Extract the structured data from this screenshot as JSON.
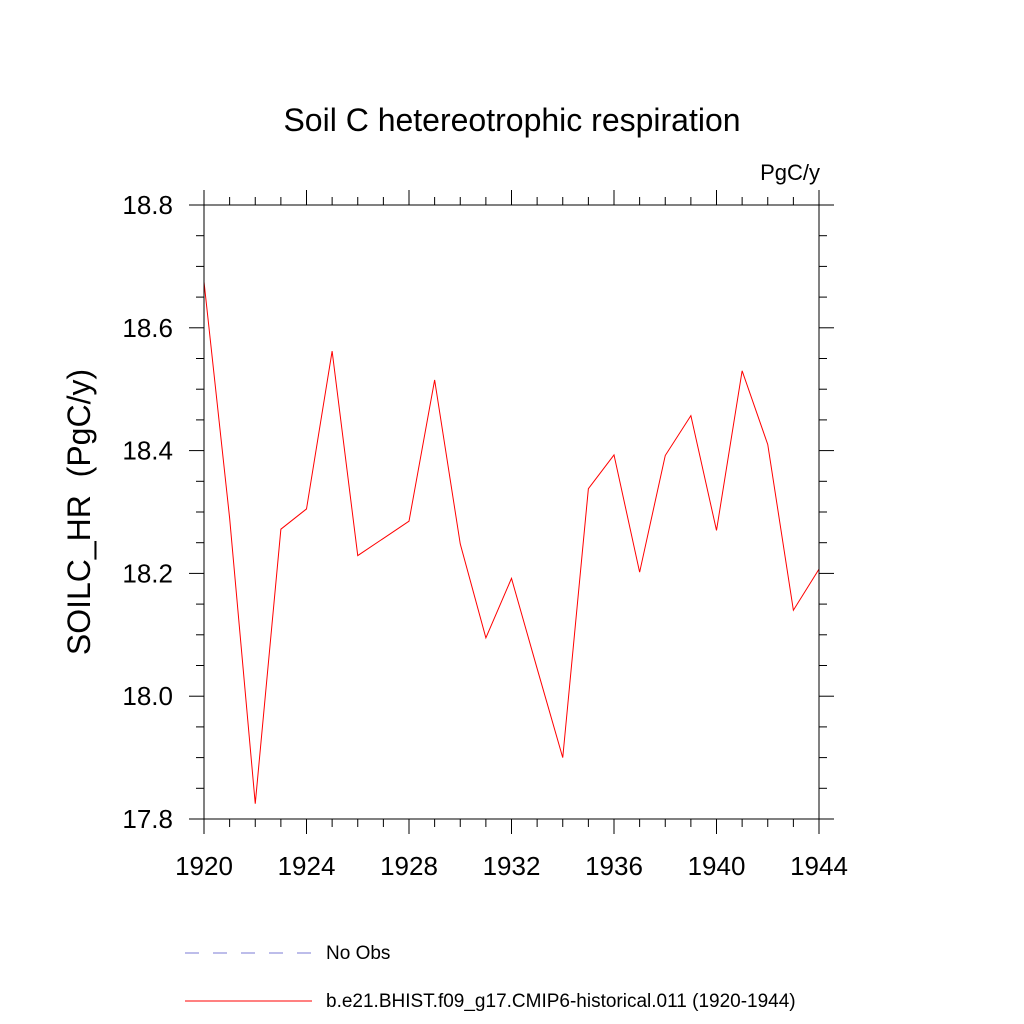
{
  "chart_data": {
    "type": "line",
    "title": "Soil C hetereotrophic respiration",
    "units_label": "PgC/y",
    "ylabel": "SOILC_HR  (PgC/y)",
    "xlabel": "",
    "xlim": [
      1920,
      1944
    ],
    "ylim": [
      17.8,
      18.8
    ],
    "x_ticks": [
      "1920",
      "1924",
      "1928",
      "1932",
      "1936",
      "1940",
      "1944"
    ],
    "y_ticks": [
      "17.8",
      "18.0",
      "18.2",
      "18.4",
      "18.6",
      "18.8"
    ],
    "grid": false,
    "legend_position": "bottom",
    "series": [
      {
        "name": "No Obs",
        "color": "#7b7bd6",
        "dash": "dashed",
        "x": [],
        "y": []
      },
      {
        "name": "b.e21.BHIST.f09_g17.CMIP6-historical.011 (1920-1944)",
        "color": "#ff0000",
        "dash": "solid",
        "x": [
          1920,
          1921,
          1922,
          1923,
          1924,
          1925,
          1926,
          1927,
          1928,
          1929,
          1930,
          1931,
          1932,
          1933,
          1934,
          1935,
          1936,
          1937,
          1938,
          1939,
          1940,
          1941,
          1942,
          1943,
          1944
        ],
        "y": [
          18.675,
          18.29,
          17.825,
          18.272,
          18.305,
          18.562,
          18.229,
          18.257,
          18.285,
          18.515,
          18.248,
          18.095,
          18.192,
          18.045,
          17.9,
          18.338,
          18.393,
          18.202,
          18.392,
          18.457,
          18.27,
          18.53,
          18.41,
          18.14,
          18.207
        ]
      }
    ]
  }
}
